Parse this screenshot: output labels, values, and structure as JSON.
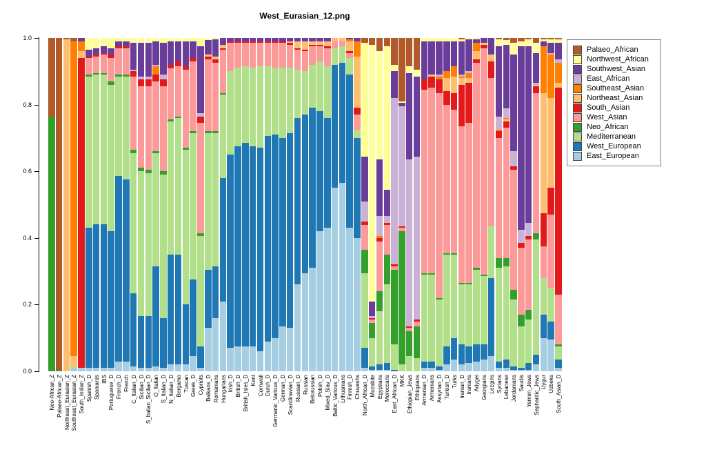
{
  "title": "West_Eurasian_12.png",
  "y_axis": {
    "ticks": [
      "0.0",
      "0.2",
      "0.4",
      "0.6",
      "0.8",
      "1.0"
    ],
    "values": [
      0,
      0.2,
      0.4,
      0.6,
      0.8,
      1.0
    ]
  },
  "legend": {
    "items": [
      {
        "label": "Palaeo_African",
        "color": "#B15928"
      },
      {
        "label": "Northwest_African",
        "color": "#FFFF99"
      },
      {
        "label": "Southwest_Asian",
        "color": "#6A3D9A"
      },
      {
        "label": "East_African",
        "color": "#CAB2D6"
      },
      {
        "label": "Southeast_Asian",
        "color": "#FF7F00"
      },
      {
        "label": "Northeast_Asian",
        "color": "#FDBF6F"
      },
      {
        "label": "South_Asian",
        "color": "#E31A1C"
      },
      {
        "label": "West_Asian",
        "color": "#FB9A99"
      },
      {
        "label": "Neo_African",
        "color": "#33A02C"
      },
      {
        "label": "Mediterranean",
        "color": "#B2DF8A"
      },
      {
        "label": "West_European",
        "color": "#1F78B4"
      },
      {
        "label": "East_European",
        "color": "#A6CEE3"
      }
    ]
  },
  "chart_data": {
    "type": "bar",
    "stacked": true,
    "title": "West_Eurasian_12.png",
    "xlabel": "",
    "ylabel": "",
    "ylim": [
      0,
      1
    ],
    "grid": false,
    "legend_position": "right",
    "components_bottom_to_top": [
      {
        "name": "East_European",
        "color": "#A6CEE3"
      },
      {
        "name": "West_European",
        "color": "#1F78B4"
      },
      {
        "name": "Mediterranean",
        "color": "#B2DF8A"
      },
      {
        "name": "Neo_African",
        "color": "#33A02C"
      },
      {
        "name": "West_Asian",
        "color": "#FB9A99"
      },
      {
        "name": "South_Asian",
        "color": "#E31A1C"
      },
      {
        "name": "Northeast_Asian",
        "color": "#FDBF6F"
      },
      {
        "name": "Southeast_Asian",
        "color": "#FF7F00"
      },
      {
        "name": "East_African",
        "color": "#CAB2D6"
      },
      {
        "name": "Southwest_Asian",
        "color": "#6A3D9A"
      },
      {
        "name": "Northwest_African",
        "color": "#FFFF99"
      },
      {
        "name": "Palaeo_African",
        "color": "#B15928"
      }
    ],
    "bars": [
      {
        "name": "Neo-African_Z",
        "v": [
          0,
          0,
          0,
          0.765,
          0,
          0,
          0,
          0,
          0,
          0,
          0,
          0.235
        ]
      },
      {
        "name": "Palaeo-African_Z",
        "v": [
          0,
          0,
          0,
          0.005,
          0,
          0,
          0,
          0,
          0,
          0,
          0,
          0.995
        ]
      },
      {
        "name": "Northeast_Eurasian_Z",
        "v": [
          0,
          0,
          0,
          0,
          0,
          0,
          0.995,
          0,
          0,
          0,
          0,
          0.005
        ]
      },
      {
        "name": "Southeast_Eurasian_Z",
        "v": [
          0.01,
          0,
          0.005,
          0,
          0,
          0,
          0.03,
          0.945,
          0,
          0,
          0,
          0.01
        ]
      },
      {
        "name": "South_Indian_Z",
        "v": [
          0.01,
          0,
          0,
          0,
          0,
          0.93,
          0.02,
          0.03,
          0,
          0.01,
          0,
          0
        ]
      },
      {
        "name": "Spanish_D",
        "v": [
          0.01,
          0.42,
          0.455,
          0.005,
          0.05,
          0.005,
          0,
          0,
          0,
          0.02,
          0.035,
          0
        ]
      },
      {
        "name": "Spaniards",
        "v": [
          0.01,
          0.43,
          0.45,
          0.005,
          0.05,
          0.005,
          0,
          0,
          0,
          0.02,
          0.03,
          0
        ]
      },
      {
        "name": "IBS",
        "v": [
          0.01,
          0.43,
          0.45,
          0.005,
          0.055,
          0.005,
          0,
          0,
          0,
          0.02,
          0.025,
          0
        ]
      },
      {
        "name": "Portuguese_D",
        "v": [
          0.01,
          0.41,
          0.44,
          0.01,
          0.07,
          0.01,
          0,
          0,
          0,
          0.02,
          0.03,
          0
        ]
      },
      {
        "name": "French_D",
        "v": [
          0.03,
          0.555,
          0.3,
          0.005,
          0.08,
          0.005,
          0,
          0,
          0,
          0.015,
          0.01,
          0
        ]
      },
      {
        "name": "French",
        "v": [
          0.03,
          0.545,
          0.31,
          0.005,
          0.08,
          0.005,
          0,
          0,
          0,
          0.015,
          0.01,
          0
        ]
      },
      {
        "name": "C_Italian_D",
        "v": [
          0.015,
          0.22,
          0.42,
          0.01,
          0.22,
          0.015,
          0,
          0,
          0.005,
          0.08,
          0.015,
          0
        ]
      },
      {
        "name": "Sicilian_D",
        "v": [
          0.01,
          0.155,
          0.435,
          0.01,
          0.245,
          0.02,
          0,
          0,
          0.01,
          0.1,
          0.015,
          0
        ]
      },
      {
        "name": "S_Italian_Sicilian_D",
        "v": [
          0.01,
          0.155,
          0.43,
          0.01,
          0.25,
          0.02,
          0,
          0,
          0.01,
          0.1,
          0.015,
          0
        ]
      },
      {
        "name": "O_Italian",
        "v": [
          0.015,
          0.3,
          0.34,
          0.005,
          0.21,
          0.02,
          0,
          0.025,
          0.005,
          0.07,
          0.01,
          0
        ]
      },
      {
        "name": "S_Italian_D",
        "v": [
          0.01,
          0.15,
          0.43,
          0.01,
          0.255,
          0.02,
          0,
          0,
          0.015,
          0.095,
          0.015,
          0
        ]
      },
      {
        "name": "N_Italian_D",
        "v": [
          0.02,
          0.33,
          0.4,
          0.005,
          0.155,
          0.01,
          0,
          0,
          0,
          0.07,
          0.01,
          0
        ]
      },
      {
        "name": "Bergamo",
        "v": [
          0.02,
          0.33,
          0.41,
          0.005,
          0.15,
          0.015,
          0,
          0,
          0,
          0.06,
          0.01,
          0
        ]
      },
      {
        "name": "Tuscan",
        "v": [
          0.02,
          0.18,
          0.465,
          0.005,
          0.235,
          0.01,
          0,
          0,
          0,
          0.075,
          0.01,
          0
        ]
      },
      {
        "name": "Greek_D",
        "v": [
          0.045,
          0.23,
          0.44,
          0.005,
          0.21,
          0.01,
          0,
          0,
          0,
          0.05,
          0.01,
          0
        ]
      },
      {
        "name": "Cypriots",
        "v": [
          0.01,
          0.065,
          0.33,
          0.01,
          0.33,
          0.02,
          0,
          0,
          0.01,
          0.2,
          0.025,
          0
        ]
      },
      {
        "name": "Balkans_D",
        "v": [
          0.13,
          0.175,
          0.41,
          0.005,
          0.215,
          0.01,
          0.005,
          0,
          0,
          0.045,
          0.005,
          0
        ]
      },
      {
        "name": "Romanians",
        "v": [
          0.16,
          0.155,
          0.4,
          0.005,
          0.205,
          0.01,
          0.01,
          0,
          0,
          0.05,
          0.005,
          0
        ]
      },
      {
        "name": "Hungarians",
        "v": [
          0.21,
          0.37,
          0.25,
          0.005,
          0.13,
          0.005,
          0.01,
          0,
          0,
          0.02,
          0,
          0
        ]
      },
      {
        "name": "Irish_D",
        "v": [
          0.07,
          0.58,
          0.25,
          0,
          0.085,
          0.005,
          0,
          0,
          0,
          0.01,
          0,
          0
        ]
      },
      {
        "name": "British_D",
        "v": [
          0.075,
          0.6,
          0.235,
          0,
          0.075,
          0.005,
          0,
          0,
          0,
          0.01,
          0,
          0
        ]
      },
      {
        "name": "British_Isles_D",
        "v": [
          0.075,
          0.61,
          0.23,
          0,
          0.07,
          0.005,
          0,
          0,
          0,
          0.01,
          0,
          0
        ]
      },
      {
        "name": "Kent",
        "v": [
          0.075,
          0.6,
          0.235,
          0,
          0.075,
          0.005,
          0,
          0,
          0,
          0.01,
          0,
          0
        ]
      },
      {
        "name": "Cornwall",
        "v": [
          0.06,
          0.61,
          0.245,
          0,
          0.07,
          0.005,
          0,
          0,
          0,
          0.01,
          0,
          0
        ]
      },
      {
        "name": "Dutch_D",
        "v": [
          0.09,
          0.615,
          0.21,
          0,
          0.07,
          0.005,
          0,
          0,
          0,
          0.01,
          0,
          0
        ]
      },
      {
        "name": "Germanic_Various_D",
        "v": [
          0.1,
          0.61,
          0.2,
          0,
          0.075,
          0.005,
          0,
          0,
          0,
          0.01,
          0,
          0
        ]
      },
      {
        "name": "German_D",
        "v": [
          0.135,
          0.565,
          0.21,
          0,
          0.075,
          0.005,
          0,
          0,
          0,
          0.01,
          0,
          0
        ]
      },
      {
        "name": "Scandinavian_D",
        "v": [
          0.13,
          0.585,
          0.195,
          0,
          0.07,
          0.005,
          0.005,
          0,
          0,
          0.01,
          0,
          0
        ]
      },
      {
        "name": "Russian_D",
        "v": [
          0.26,
          0.5,
          0.145,
          0,
          0.06,
          0.005,
          0.02,
          0,
          0,
          0.01,
          0,
          0
        ]
      },
      {
        "name": "Russian",
        "v": [
          0.295,
          0.475,
          0.13,
          0,
          0.06,
          0.005,
          0.025,
          0,
          0,
          0.01,
          0,
          0
        ]
      },
      {
        "name": "Belorussian",
        "v": [
          0.31,
          0.48,
          0.13,
          0,
          0.055,
          0.005,
          0.01,
          0,
          0,
          0.01,
          0,
          0
        ]
      },
      {
        "name": "Polish_D",
        "v": [
          0.42,
          0.36,
          0.15,
          0,
          0.045,
          0.005,
          0.01,
          0,
          0,
          0.01,
          0,
          0
        ]
      },
      {
        "name": "Mixed_Slav_D",
        "v": [
          0.43,
          0.33,
          0.155,
          0,
          0.055,
          0.005,
          0.015,
          0,
          0,
          0.01,
          0,
          0
        ]
      },
      {
        "name": "Baltic_Various_D",
        "v": [
          0.55,
          0.37,
          0.05,
          0,
          0.02,
          0,
          0.01,
          0,
          0,
          0,
          0,
          0
        ]
      },
      {
        "name": "Lithuanians",
        "v": [
          0.565,
          0.36,
          0.05,
          0,
          0.015,
          0,
          0.01,
          0,
          0,
          0,
          0,
          0
        ]
      },
      {
        "name": "Finnish_D",
        "v": [
          0.43,
          0.46,
          0.05,
          0,
          0.015,
          0.005,
          0.03,
          0.005,
          0,
          0.005,
          0,
          0
        ]
      },
      {
        "name": "Chuvashs",
        "v": [
          0.4,
          0.3,
          0.025,
          0,
          0.045,
          0.02,
          0.155,
          0.045,
          0,
          0.01,
          0,
          0
        ]
      },
      {
        "name": "North_African_D",
        "v": [
          0.01,
          0.06,
          0.225,
          0.07,
          0.075,
          0.01,
          0,
          0,
          0.06,
          0.135,
          0.34,
          0.015
        ]
      },
      {
        "name": "Mozabite",
        "v": [
          0.005,
          0.01,
          0.085,
          0.045,
          0.01,
          0.005,
          0,
          0,
          0.005,
          0.045,
          0.77,
          0.02
        ]
      },
      {
        "name": "Egyptians",
        "v": [
          0.005,
          0.015,
          0.16,
          0.06,
          0.15,
          0.01,
          0,
          0.005,
          0.06,
          0.17,
          0.325,
          0.04
        ]
      },
      {
        "name": "Moroccans",
        "v": [
          0.005,
          0.02,
          0.235,
          0.09,
          0.09,
          0.005,
          0,
          0,
          0.02,
          0.08,
          0.43,
          0.025
        ]
      },
      {
        "name": "East_African_D",
        "v": [
          0,
          0.005,
          0.075,
          0.225,
          0.01,
          0.005,
          0,
          0,
          0.5,
          0.08,
          0.02,
          0.08
        ]
      },
      {
        "name": "MKK",
        "v": [
          0,
          0,
          0.02,
          0.4,
          0.01,
          0.005,
          0,
          0,
          0.36,
          0.01,
          0.005,
          0.19
        ]
      },
      {
        "name": "Ethiopian_Jews",
        "v": [
          0,
          0,
          0.045,
          0.075,
          0.01,
          0.005,
          0,
          0,
          0.5,
          0.26,
          0.02,
          0.085
        ]
      },
      {
        "name": "Ethiopians",
        "v": [
          0,
          0,
          0.04,
          0.095,
          0.015,
          0.005,
          0,
          0,
          0.49,
          0.24,
          0.02,
          0.095
        ]
      },
      {
        "name": "Armenian_D",
        "v": [
          0.01,
          0.02,
          0.26,
          0.005,
          0.55,
          0.03,
          0,
          0,
          0,
          0.115,
          0.01,
          0
        ]
      },
      {
        "name": "Armenians",
        "v": [
          0.01,
          0.02,
          0.26,
          0.005,
          0.555,
          0.035,
          0.005,
          0,
          0,
          0.1,
          0.01,
          0
        ]
      },
      {
        "name": "Assyrian_D",
        "v": [
          0.005,
          0.01,
          0.2,
          0.005,
          0.615,
          0.04,
          0,
          0.01,
          0.005,
          0.1,
          0.01,
          0
        ]
      },
      {
        "name": "Turkish_D",
        "v": [
          0.02,
          0.055,
          0.275,
          0.005,
          0.445,
          0.04,
          0.04,
          0.02,
          0,
          0.09,
          0.01,
          0
        ]
      },
      {
        "name": "Turks",
        "v": [
          0.035,
          0.065,
          0.25,
          0.005,
          0.43,
          0.05,
          0.05,
          0.03,
          0,
          0.075,
          0.01,
          0
        ]
      },
      {
        "name": "Iranian_D",
        "v": [
          0.02,
          0.06,
          0.18,
          0.005,
          0.47,
          0.125,
          0.02,
          0.005,
          0.005,
          0.1,
          0.005,
          0.005
        ]
      },
      {
        "name": "Iranians",
        "v": [
          0.025,
          0.05,
          0.185,
          0.005,
          0.48,
          0.12,
          0.015,
          0.015,
          0.005,
          0.095,
          0.005,
          0
        ]
      },
      {
        "name": "Adygei",
        "v": [
          0.03,
          0.05,
          0.225,
          0.005,
          0.615,
          0.01,
          0.025,
          0.025,
          0,
          0.01,
          0.005,
          0
        ]
      },
      {
        "name": "Georgians",
        "v": [
          0.035,
          0.045,
          0.205,
          0.005,
          0.68,
          0.01,
          0.005,
          0,
          0,
          0.015,
          0,
          0
        ]
      },
      {
        "name": "Lezgins",
        "v": [
          0.045,
          0.235,
          0.155,
          0,
          0.445,
          0.05,
          0.02,
          0,
          0,
          0.05,
          0,
          0
        ]
      },
      {
        "name": "Syrians",
        "v": [
          0.01,
          0.02,
          0.28,
          0.03,
          0.36,
          0.02,
          0,
          0.005,
          0.04,
          0.21,
          0.02,
          0.005
        ]
      },
      {
        "name": "Lebanese",
        "v": [
          0.01,
          0.025,
          0.28,
          0.025,
          0.39,
          0.02,
          0.005,
          0.005,
          0.03,
          0.19,
          0.015,
          0.005
        ]
      },
      {
        "name": "Jordanians",
        "v": [
          0.005,
          0.01,
          0.2,
          0.03,
          0.36,
          0.01,
          0,
          0,
          0.045,
          0.29,
          0.035,
          0.015
        ]
      },
      {
        "name": "Saudis",
        "v": [
          0.005,
          0.005,
          0.125,
          0.035,
          0.2,
          0.015,
          0,
          0,
          0.04,
          0.55,
          0.015,
          0.01
        ]
      },
      {
        "name": "Yemen_Jews",
        "v": [
          0.005,
          0.02,
          0.13,
          0.03,
          0.21,
          0.01,
          0,
          0,
          0.04,
          0.53,
          0.02,
          0.005
        ]
      },
      {
        "name": "Sephardic_Jews",
        "v": [
          0.02,
          0.03,
          0.345,
          0.02,
          0.42,
          0.02,
          0.005,
          0,
          0.005,
          0.09,
          0.03,
          0.015
        ]
      },
      {
        "name": "Uygur",
        "v": [
          0.1,
          0.07,
          0.11,
          0,
          0.095,
          0.1,
          0.36,
          0.14,
          0,
          0.015,
          0.005,
          0.005
        ]
      },
      {
        "name": "Uzbeks",
        "v": [
          0.095,
          0.055,
          0.1,
          0,
          0.22,
          0.08,
          0.27,
          0.13,
          0.005,
          0.03,
          0.01,
          0.005
        ]
      },
      {
        "name": "South_Asian_D",
        "v": [
          0.01,
          0.025,
          0.04,
          0.005,
          0.15,
          0.62,
          0.015,
          0.06,
          0.01,
          0.05,
          0.01,
          0.005
        ]
      }
    ]
  }
}
